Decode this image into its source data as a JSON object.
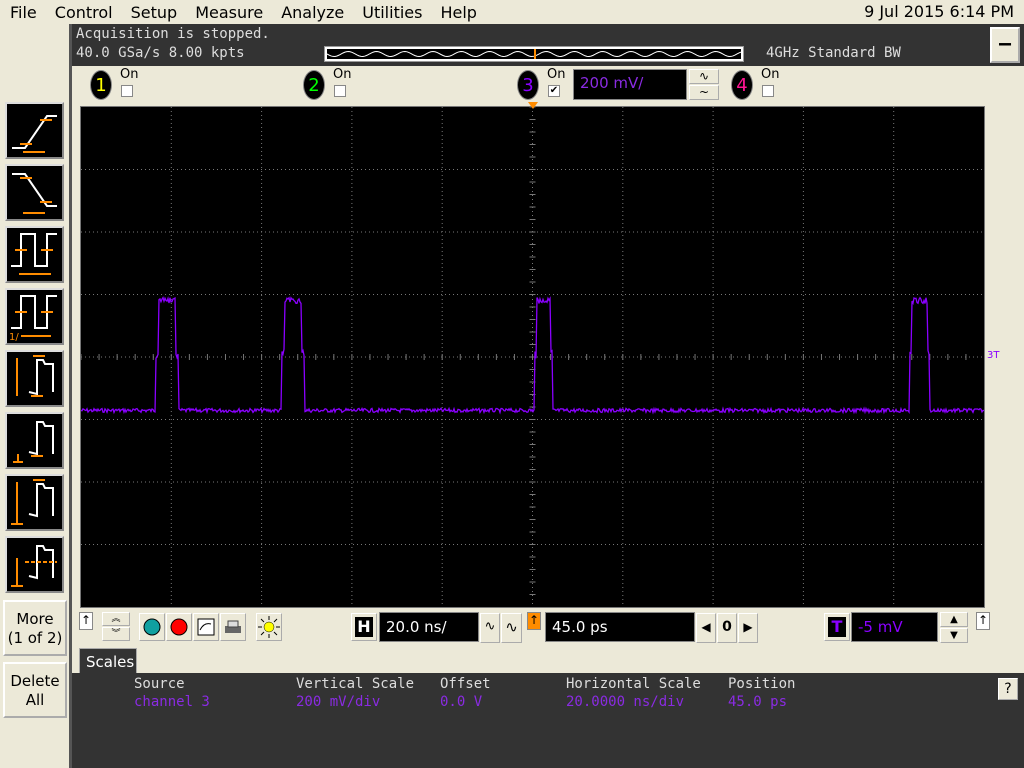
{
  "menu": [
    "File",
    "Control",
    "Setup",
    "Measure",
    "Analyze",
    "Utilities",
    "Help"
  ],
  "datetime": "9 Jul 2015  6:14 PM",
  "status": {
    "line1": "Acquisition is stopped.",
    "line2": "40.0 GSa/s   8.00 kpts",
    "bandwidth": "4GHz Standard BW",
    "minimize": "—"
  },
  "channels": [
    {
      "num": "1",
      "label": "On",
      "checked": false,
      "color": "#ffff00"
    },
    {
      "num": "2",
      "label": "On",
      "checked": false,
      "color": "#00ff00"
    },
    {
      "num": "3",
      "label": "On",
      "checked": true,
      "color": "#8a00ff",
      "scale": "200 mV/",
      "coupling1": "∿",
      "coupling2": "~"
    },
    {
      "num": "4",
      "label": "On",
      "checked": false,
      "color": "#ff1493"
    }
  ],
  "side_buttons": {
    "more": "More",
    "more_sub": "(1 of 2)",
    "delete": "Delete",
    "delete_sub": "All"
  },
  "toolbar": {
    "h_label": "H",
    "h_scale": "20.0 ns/",
    "h_position": "45.0 ps",
    "zero": "0",
    "t_label": "T",
    "trigger_level": "-5 mV",
    "arrow_up": "↑"
  },
  "trigger_marker": "3T",
  "tab": "Scales",
  "info": {
    "headers": [
      "Source",
      "Vertical Scale",
      "Offset",
      "Horizontal Scale",
      "Position"
    ],
    "values": [
      "channel 3",
      "200 mV/div",
      "0.0 V",
      "20.0000 ns/div",
      "45.0 ps"
    ],
    "help": "?"
  },
  "waveform": {
    "color": "#8a00ff",
    "time_per_div_ns": 20,
    "volts_per_div_mV": 200,
    "low_mV": -171,
    "high_mV": 190,
    "pulses_ns": [
      [
        -83.5,
        -78.5
      ],
      [
        -55.5,
        -50.5
      ],
      [
        0.5,
        4.5
      ],
      [
        83.5,
        88
      ]
    ]
  }
}
